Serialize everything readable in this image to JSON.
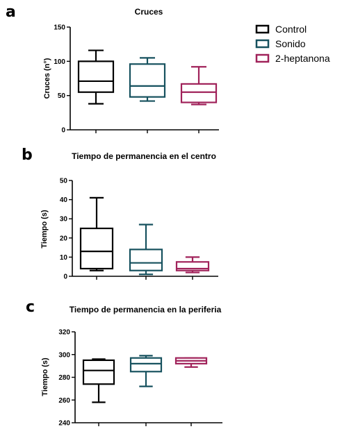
{
  "legend": {
    "items": [
      {
        "label": "Control",
        "color": "#000000"
      },
      {
        "label": "Sonido",
        "color": "#16515e"
      },
      {
        "label": "2-heptanona",
        "color": "#a0225a"
      }
    ]
  },
  "chart_data": [
    {
      "type": "box",
      "panel": "a",
      "title": "Cruces",
      "ylabel": "Cruces (n°)",
      "ylim": [
        0,
        150
      ],
      "yticks": [
        0,
        50,
        100,
        150
      ],
      "series": [
        {
          "name": "Control",
          "color": "#000000",
          "min": 38,
          "q1": 55,
          "median": 71,
          "q3": 100,
          "max": 116
        },
        {
          "name": "Sonido",
          "color": "#16515e",
          "min": 42,
          "q1": 48,
          "median": 64,
          "q3": 96,
          "max": 105
        },
        {
          "name": "2-heptanona",
          "color": "#a0225a",
          "min": 37,
          "q1": 40,
          "median": 55,
          "q3": 67,
          "max": 92
        }
      ]
    },
    {
      "type": "box",
      "panel": "b",
      "title": "Tiempo de permanencia en el centro",
      "ylabel": "Tiempo (s)",
      "ylim": [
        0,
        50
      ],
      "yticks": [
        0,
        10,
        20,
        30,
        40,
        50
      ],
      "series": [
        {
          "name": "Control",
          "color": "#000000",
          "min": 3,
          "q1": 4,
          "median": 13,
          "q3": 25,
          "max": 41
        },
        {
          "name": "Sonido",
          "color": "#16515e",
          "min": 1,
          "q1": 3,
          "median": 7,
          "q3": 14,
          "max": 27
        },
        {
          "name": "2-heptanona",
          "color": "#a0225a",
          "min": 2,
          "q1": 3,
          "median": 4,
          "q3": 7.5,
          "max": 10
        }
      ]
    },
    {
      "type": "box",
      "panel": "c",
      "title": "Tiempo de permanencia en la periferia",
      "ylabel": "Tiempo (s)",
      "ylim": [
        240,
        320
      ],
      "yticks": [
        240,
        260,
        280,
        300,
        320
      ],
      "series": [
        {
          "name": "Control",
          "color": "#000000",
          "min": 258,
          "q1": 274,
          "median": 286,
          "q3": 295,
          "max": 296
        },
        {
          "name": "Sonido",
          "color": "#16515e",
          "min": 272,
          "q1": 285,
          "median": 292,
          "q3": 297,
          "max": 299
        },
        {
          "name": "2-heptanona",
          "color": "#a0225a",
          "min": 289,
          "q1": 292,
          "median": 294.5,
          "q3": 297,
          "max": 297
        }
      ]
    }
  ]
}
